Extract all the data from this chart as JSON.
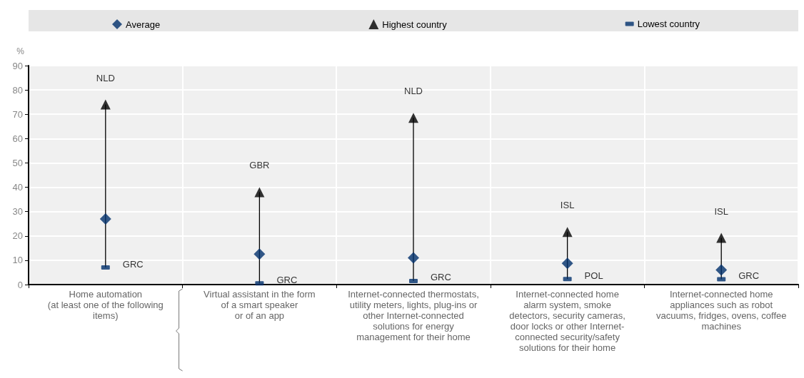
{
  "chart_data": {
    "type": "scatter",
    "ylabel": "%",
    "categories": [
      "Home automation\n(at least one of the following\nitems)",
      "Virtual assistant in the form\nof a smart speaker\nor of an app",
      "Internet-connected thermostats,\nutility meters, lights, plug-ins or\nother Internet-connected\nsolutions for energy\nmanagement for their home",
      "Internet-connected home\nalarm system, smoke\ndetectors, security cameras,\ndoor locks or other Internet-\nconnected security/safety\nsolutions for their home",
      "Internet-connected home\nappliances such as robot\nvacuums, fridges, ovens, coffee\nmachines"
    ],
    "series": [
      {
        "name": "Average",
        "color": "#002f6c",
        "marker": "diamond",
        "values": [
          27,
          12.5,
          11,
          8.7,
          6
        ]
      },
      {
        "name": "Highest country",
        "color": "#000000",
        "marker": "triangle",
        "values": [
          74,
          38,
          68.5,
          21.6,
          19.2
        ],
        "value_labels": [
          "NLD",
          "GBR",
          "NLD",
          "ISL",
          "ISL"
        ]
      },
      {
        "name": "Lowest country",
        "color": "#002f6c",
        "values": [
          7,
          0.5,
          1.5,
          2.3,
          2.2
        ],
        "value_labels": [
          "GRC",
          "GRC",
          "GRC",
          "POL",
          "GRC"
        ]
      }
    ],
    "ylim": [
      0,
      90
    ],
    "yticks": [
      0,
      10,
      20,
      30,
      40,
      50,
      60,
      70,
      80,
      90
    ],
    "grid": true,
    "legend": "top"
  }
}
